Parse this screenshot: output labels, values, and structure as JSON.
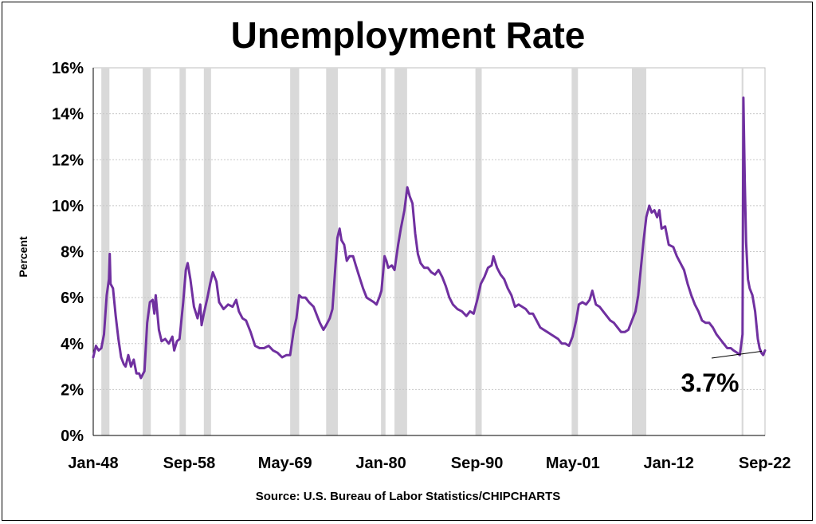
{
  "chart_data": {
    "type": "line",
    "title": "Unemployment Rate",
    "ylabel": "Percent",
    "source": "Source: U.S. Bureau of Labor Statistics/CHIPCHARTS",
    "x_tick_labels": [
      "Jan-48",
      "Sep-58",
      "May-69",
      "Jan-80",
      "Sep-90",
      "May-01",
      "Jan-12",
      "Sep-22"
    ],
    "x_tick_years": [
      1948.0,
      1958.67,
      1969.33,
      1980.0,
      1990.67,
      2001.33,
      2012.0,
      2022.67
    ],
    "xlim": [
      1948.0,
      2022.7
    ],
    "y_tick_labels": [
      "0%",
      "2%",
      "4%",
      "6%",
      "8%",
      "10%",
      "12%",
      "14%",
      "16%"
    ],
    "ylim": [
      0,
      16
    ],
    "grid": true,
    "line_color": "#7030a0",
    "recession_color": "#d9d9d9",
    "recessions": [
      [
        1948.9,
        1949.8
      ],
      [
        1953.5,
        1954.4
      ],
      [
        1957.6,
        1958.3
      ],
      [
        1960.3,
        1961.1
      ],
      [
        1969.9,
        1970.9
      ],
      [
        1973.9,
        1975.2
      ],
      [
        1980.0,
        1980.5
      ],
      [
        1981.5,
        1982.9
      ],
      [
        1990.5,
        1991.2
      ],
      [
        2001.2,
        2001.9
      ],
      [
        2007.9,
        2009.5
      ],
      [
        2020.1,
        2020.3
      ]
    ],
    "annotation": {
      "text": "3.7%",
      "value": 3.7,
      "x": 2022.7
    },
    "series": [
      {
        "values": [
          [
            1948.0,
            3.4
          ],
          [
            1948.3,
            3.9
          ],
          [
            1948.6,
            3.7
          ],
          [
            1948.9,
            3.8
          ],
          [
            1949.2,
            4.4
          ],
          [
            1949.5,
            6.1
          ],
          [
            1949.75,
            6.8
          ],
          [
            1949.83,
            7.9
          ],
          [
            1949.92,
            6.6
          ],
          [
            1950.2,
            6.4
          ],
          [
            1950.5,
            5.2
          ],
          [
            1950.8,
            4.2
          ],
          [
            1951.1,
            3.4
          ],
          [
            1951.4,
            3.1
          ],
          [
            1951.6,
            3.0
          ],
          [
            1951.9,
            3.5
          ],
          [
            1952.2,
            3.0
          ],
          [
            1952.5,
            3.3
          ],
          [
            1952.8,
            2.7
          ],
          [
            1953.1,
            2.7
          ],
          [
            1953.3,
            2.5
          ],
          [
            1953.7,
            2.8
          ],
          [
            1954.0,
            4.9
          ],
          [
            1954.3,
            5.8
          ],
          [
            1954.6,
            5.9
          ],
          [
            1954.8,
            5.3
          ],
          [
            1954.95,
            6.1
          ],
          [
            1955.3,
            4.6
          ],
          [
            1955.6,
            4.1
          ],
          [
            1956.0,
            4.2
          ],
          [
            1956.4,
            4.0
          ],
          [
            1956.8,
            4.3
          ],
          [
            1957.0,
            3.7
          ],
          [
            1957.3,
            4.1
          ],
          [
            1957.6,
            4.2
          ],
          [
            1958.0,
            5.8
          ],
          [
            1958.3,
            7.2
          ],
          [
            1958.5,
            7.5
          ],
          [
            1958.8,
            6.8
          ],
          [
            1959.2,
            5.6
          ],
          [
            1959.6,
            5.1
          ],
          [
            1959.9,
            5.7
          ],
          [
            1960.05,
            4.8
          ],
          [
            1960.3,
            5.3
          ],
          [
            1960.7,
            6.0
          ],
          [
            1961.0,
            6.6
          ],
          [
            1961.3,
            7.1
          ],
          [
            1961.7,
            6.7
          ],
          [
            1962.0,
            5.8
          ],
          [
            1962.5,
            5.5
          ],
          [
            1963.0,
            5.7
          ],
          [
            1963.5,
            5.6
          ],
          [
            1963.9,
            5.9
          ],
          [
            1964.2,
            5.4
          ],
          [
            1964.6,
            5.1
          ],
          [
            1965.0,
            5.0
          ],
          [
            1965.5,
            4.5
          ],
          [
            1966.0,
            3.9
          ],
          [
            1966.5,
            3.8
          ],
          [
            1967.0,
            3.8
          ],
          [
            1967.5,
            3.9
          ],
          [
            1968.0,
            3.7
          ],
          [
            1968.5,
            3.6
          ],
          [
            1969.0,
            3.4
          ],
          [
            1969.5,
            3.5
          ],
          [
            1969.9,
            3.5
          ],
          [
            1970.3,
            4.6
          ],
          [
            1970.6,
            5.1
          ],
          [
            1970.9,
            6.1
          ],
          [
            1971.2,
            6.0
          ],
          [
            1971.6,
            6.0
          ],
          [
            1972.0,
            5.8
          ],
          [
            1972.5,
            5.6
          ],
          [
            1972.9,
            5.2
          ],
          [
            1973.2,
            4.9
          ],
          [
            1973.6,
            4.6
          ],
          [
            1973.9,
            4.8
          ],
          [
            1974.3,
            5.1
          ],
          [
            1974.6,
            5.5
          ],
          [
            1974.9,
            7.2
          ],
          [
            1975.15,
            8.6
          ],
          [
            1975.4,
            9.0
          ],
          [
            1975.6,
            8.5
          ],
          [
            1975.9,
            8.3
          ],
          [
            1976.2,
            7.6
          ],
          [
            1976.5,
            7.8
          ],
          [
            1976.9,
            7.8
          ],
          [
            1977.2,
            7.4
          ],
          [
            1977.6,
            6.9
          ],
          [
            1978.0,
            6.4
          ],
          [
            1978.4,
            6.0
          ],
          [
            1978.8,
            5.9
          ],
          [
            1979.2,
            5.8
          ],
          [
            1979.5,
            5.7
          ],
          [
            1979.8,
            6.0
          ],
          [
            1980.05,
            6.3
          ],
          [
            1980.4,
            7.8
          ],
          [
            1980.6,
            7.6
          ],
          [
            1980.8,
            7.3
          ],
          [
            1981.2,
            7.4
          ],
          [
            1981.5,
            7.2
          ],
          [
            1981.9,
            8.3
          ],
          [
            1982.2,
            9.0
          ],
          [
            1982.6,
            9.8
          ],
          [
            1982.92,
            10.8
          ],
          [
            1983.2,
            10.4
          ],
          [
            1983.5,
            10.1
          ],
          [
            1983.8,
            8.8
          ],
          [
            1984.1,
            7.9
          ],
          [
            1984.4,
            7.5
          ],
          [
            1984.8,
            7.3
          ],
          [
            1985.2,
            7.3
          ],
          [
            1985.6,
            7.1
          ],
          [
            1986.0,
            7.0
          ],
          [
            1986.4,
            7.2
          ],
          [
            1986.8,
            6.9
          ],
          [
            1987.2,
            6.5
          ],
          [
            1987.6,
            6.0
          ],
          [
            1988.0,
            5.7
          ],
          [
            1988.5,
            5.5
          ],
          [
            1989.0,
            5.4
          ],
          [
            1989.5,
            5.2
          ],
          [
            1989.9,
            5.4
          ],
          [
            1990.3,
            5.3
          ],
          [
            1990.7,
            5.9
          ],
          [
            1991.1,
            6.6
          ],
          [
            1991.5,
            6.9
          ],
          [
            1991.9,
            7.3
          ],
          [
            1992.3,
            7.4
          ],
          [
            1992.5,
            7.8
          ],
          [
            1992.9,
            7.3
          ],
          [
            1993.3,
            7.0
          ],
          [
            1993.7,
            6.8
          ],
          [
            1994.1,
            6.4
          ],
          [
            1994.5,
            6.1
          ],
          [
            1994.9,
            5.6
          ],
          [
            1995.3,
            5.7
          ],
          [
            1995.7,
            5.6
          ],
          [
            1996.1,
            5.5
          ],
          [
            1996.5,
            5.3
          ],
          [
            1996.9,
            5.3
          ],
          [
            1997.3,
            5.0
          ],
          [
            1997.7,
            4.7
          ],
          [
            1998.1,
            4.6
          ],
          [
            1998.5,
            4.5
          ],
          [
            1998.9,
            4.4
          ],
          [
            1999.3,
            4.3
          ],
          [
            1999.7,
            4.2
          ],
          [
            2000.1,
            4.0
          ],
          [
            2000.5,
            4.0
          ],
          [
            2000.9,
            3.9
          ],
          [
            2001.3,
            4.3
          ],
          [
            2001.7,
            5.0
          ],
          [
            2002.0,
            5.7
          ],
          [
            2002.4,
            5.8
          ],
          [
            2002.8,
            5.7
          ],
          [
            2003.2,
            5.9
          ],
          [
            2003.5,
            6.3
          ],
          [
            2003.9,
            5.7
          ],
          [
            2004.3,
            5.6
          ],
          [
            2004.7,
            5.4
          ],
          [
            2005.1,
            5.2
          ],
          [
            2005.5,
            5.0
          ],
          [
            2005.9,
            4.9
          ],
          [
            2006.3,
            4.7
          ],
          [
            2006.7,
            4.5
          ],
          [
            2007.1,
            4.5
          ],
          [
            2007.5,
            4.6
          ],
          [
            2007.9,
            5.0
          ],
          [
            2008.3,
            5.4
          ],
          [
            2008.6,
            6.1
          ],
          [
            2008.9,
            7.3
          ],
          [
            2009.2,
            8.5
          ],
          [
            2009.5,
            9.5
          ],
          [
            2009.83,
            10.0
          ],
          [
            2010.1,
            9.7
          ],
          [
            2010.4,
            9.8
          ],
          [
            2010.7,
            9.5
          ],
          [
            2010.95,
            9.8
          ],
          [
            2011.2,
            9.0
          ],
          [
            2011.6,
            9.1
          ],
          [
            2012.0,
            8.3
          ],
          [
            2012.5,
            8.2
          ],
          [
            2012.9,
            7.8
          ],
          [
            2013.3,
            7.5
          ],
          [
            2013.7,
            7.2
          ],
          [
            2014.1,
            6.6
          ],
          [
            2014.5,
            6.1
          ],
          [
            2014.9,
            5.7
          ],
          [
            2015.3,
            5.4
          ],
          [
            2015.7,
            5.0
          ],
          [
            2016.1,
            4.9
          ],
          [
            2016.5,
            4.9
          ],
          [
            2016.9,
            4.7
          ],
          [
            2017.3,
            4.4
          ],
          [
            2017.7,
            4.2
          ],
          [
            2018.1,
            4.0
          ],
          [
            2018.5,
            3.8
          ],
          [
            2018.9,
            3.8
          ],
          [
            2019.2,
            3.7
          ],
          [
            2019.6,
            3.6
          ],
          [
            2019.9,
            3.5
          ],
          [
            2020.2,
            4.4
          ],
          [
            2020.3,
            14.7
          ],
          [
            2020.45,
            11.1
          ],
          [
            2020.6,
            8.4
          ],
          [
            2020.8,
            6.8
          ],
          [
            2021.0,
            6.4
          ],
          [
            2021.3,
            6.1
          ],
          [
            2021.6,
            5.4
          ],
          [
            2021.9,
            4.2
          ],
          [
            2022.1,
            3.8
          ],
          [
            2022.3,
            3.6
          ],
          [
            2022.5,
            3.5
          ],
          [
            2022.7,
            3.7
          ]
        ]
      }
    ]
  }
}
